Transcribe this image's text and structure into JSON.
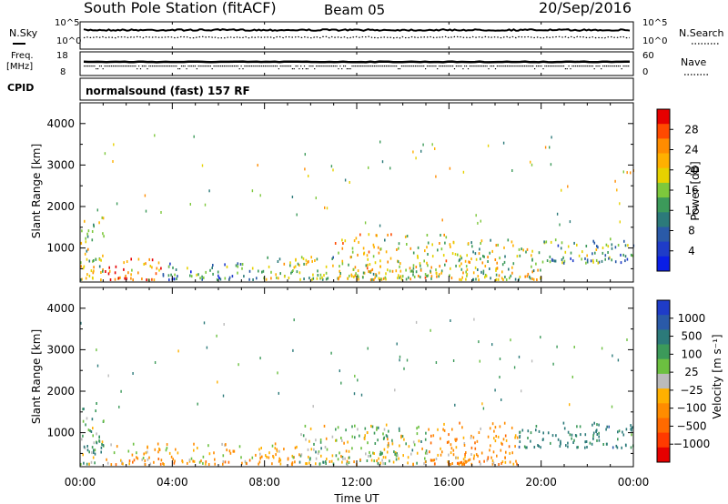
{
  "header": {
    "title": "South Pole Station (fitACF)",
    "beam": "Beam 05",
    "date": "20/Sep/2016"
  },
  "status_panels": {
    "nsky": {
      "label": "N.Sky",
      "ticks": [
        "10^5",
        "10^0"
      ]
    },
    "nsearch": {
      "label": "N.Search",
      "ticks": [
        "10^5",
        "10^0"
      ]
    },
    "freq": {
      "label_line1": "Freq.",
      "label_line2": "[MHz]",
      "ticks": [
        "18",
        "8"
      ]
    },
    "nave": {
      "label": "Nave",
      "ticks": [
        "60",
        "0"
      ]
    },
    "cpid": {
      "label": "CPID",
      "mode": "normalsound (fast) 157 RF"
    }
  },
  "axes": {
    "ylabel": "Slant Range [km]",
    "xlabel": "Time UT",
    "yticks": [
      "4000",
      "3000",
      "2000",
      "1000"
    ],
    "xticks": [
      "00:00",
      "04:00",
      "08:00",
      "12:00",
      "16:00",
      "20:00",
      "00:00"
    ]
  },
  "power_colorbar": {
    "label": "Power [dB]",
    "ticks": [
      "28",
      "24",
      "20",
      "16",
      "12",
      "8",
      "4"
    ],
    "colors": [
      "#e60000",
      "#ff4a00",
      "#ff8c00",
      "#ffb000",
      "#e6d200",
      "#7dc83c",
      "#3c9a5a",
      "#2c7a7a",
      "#2a5aa8",
      "#1f3cc8",
      "#0a1ee6"
    ]
  },
  "velocity_colorbar": {
    "label": "Velocity [m s⁻¹]",
    "ticks": [
      "1000",
      "500",
      "100",
      "25",
      "−25",
      "−100",
      "−500",
      "−1000"
    ],
    "colors": [
      "#1f3cc8",
      "#2a5aa8",
      "#2c7a7a",
      "#3c9a5a",
      "#6cc040",
      "#bbbbbb",
      "#ffb000",
      "#ff8c00",
      "#ff6a00",
      "#ff3a00",
      "#e60000"
    ]
  },
  "chart_data": [
    {
      "type": "heatmap",
      "title": "Power",
      "xlabel": "Time UT",
      "ylabel": "Slant Range [km]",
      "xlim": [
        "00:00",
        "24:00"
      ],
      "ylim": [
        180,
        4500
      ],
      "colorbar_label": "Power [dB]",
      "colorbar_range": [
        0,
        32
      ],
      "regions": [
        {
          "t_start": 0.0,
          "t_end": 1.0,
          "range_min": 200,
          "range_max": 1700,
          "value": 18
        },
        {
          "t_start": 1.0,
          "t_end": 3.5,
          "range_min": 200,
          "range_max": 700,
          "value": 26
        },
        {
          "t_start": 3.5,
          "t_end": 8.0,
          "range_min": 200,
          "range_max": 600,
          "value": 10
        },
        {
          "t_start": 8.0,
          "t_end": 11.0,
          "range_min": 200,
          "range_max": 800,
          "value": 16
        },
        {
          "t_start": 11.0,
          "t_end": 16.0,
          "range_min": 200,
          "range_max": 1300,
          "value": 20
        },
        {
          "t_start": 16.0,
          "t_end": 20.0,
          "range_min": 200,
          "range_max": 1200,
          "value": 18
        },
        {
          "t_start": 20.0,
          "t_end": 24.0,
          "range_min": 600,
          "range_max": 1200,
          "value": 12
        }
      ]
    },
    {
      "type": "heatmap",
      "title": "Velocity",
      "xlabel": "Time UT",
      "ylabel": "Slant Range [km]",
      "xlim": [
        "00:00",
        "24:00"
      ],
      "ylim": [
        180,
        4500
      ],
      "colorbar_label": "Velocity [m s⁻¹]",
      "colorbar_range": [
        -1000,
        1000
      ],
      "regions": [
        {
          "t_start": 0.0,
          "t_end": 1.0,
          "range_min": 200,
          "range_max": 1700,
          "value": 150
        },
        {
          "t_start": 1.0,
          "t_end": 4.0,
          "range_min": 200,
          "range_max": 700,
          "value": -150
        },
        {
          "t_start": 4.0,
          "t_end": 9.5,
          "range_min": 200,
          "range_max": 700,
          "value": -130
        },
        {
          "t_start": 9.5,
          "t_end": 15.0,
          "range_min": 200,
          "range_max": 1200,
          "value": 60
        },
        {
          "t_start": 15.0,
          "t_end": 19.0,
          "range_min": 200,
          "range_max": 1200,
          "value": -200
        },
        {
          "t_start": 19.0,
          "t_end": 24.0,
          "range_min": 600,
          "range_max": 1200,
          "value": 300
        }
      ]
    }
  ]
}
